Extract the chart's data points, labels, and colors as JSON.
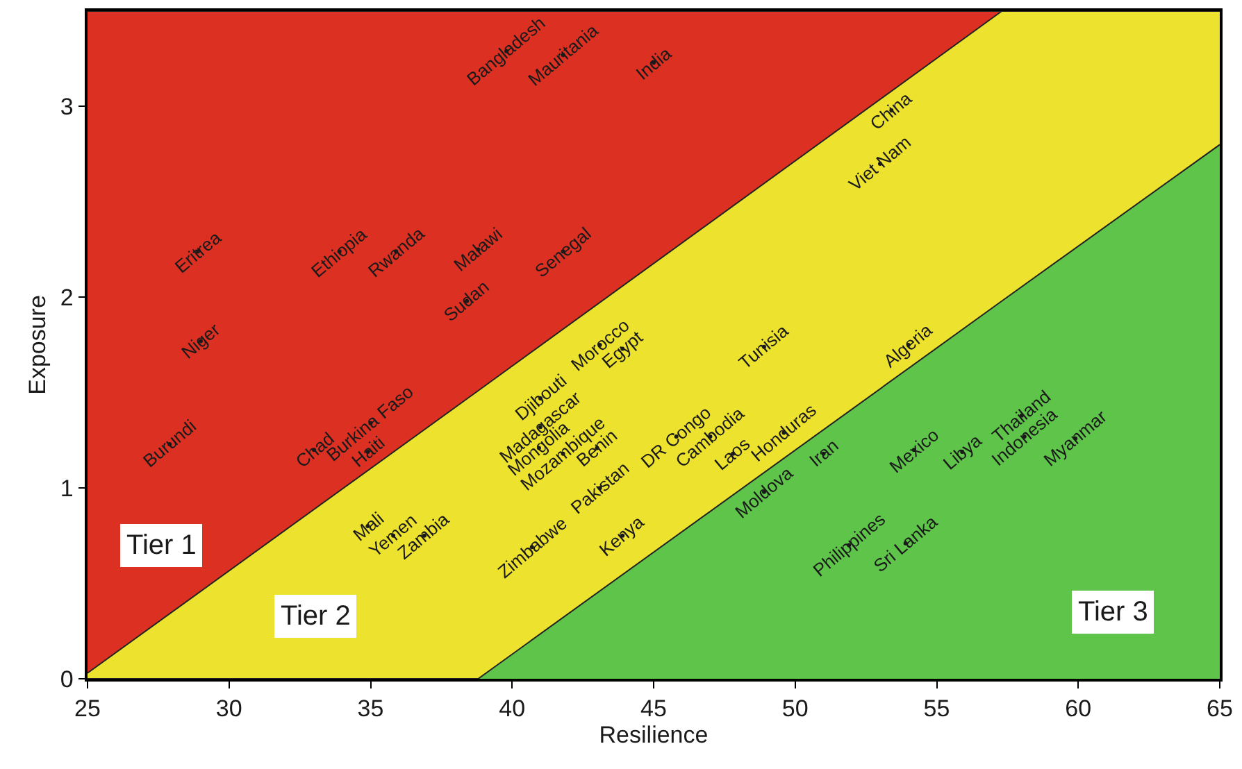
{
  "chart_data": {
    "type": "scatter",
    "xlabel": "Resilience",
    "ylabel": "Exposure",
    "xlim": [
      25,
      65
    ],
    "xticks": [
      25,
      30,
      35,
      40,
      45,
      50,
      55,
      60,
      65
    ],
    "ylim": [
      0,
      3.5
    ],
    "yticks": [
      0,
      1,
      2,
      3
    ],
    "marker": "none",
    "stacked": true,
    "series": [
      {
        "type": "area",
        "color": "#5fc54a",
        "x": [
          25,
          38.8,
          57.3,
          65
        ],
        "values": [
          0,
          0,
          1.98,
          2.8
        ]
      },
      {
        "type": "area",
        "color": "#ede22e",
        "x": [
          25,
          38.8,
          57.3,
          65
        ],
        "values": [
          0.03,
          1.51,
          1.52,
          0.7
        ]
      },
      {
        "type": "area",
        "color": "#dc3023",
        "x": [
          25,
          38.8,
          57.3,
          65
        ],
        "values": [
          3.47,
          1.99,
          0,
          0
        ]
      },
      {
        "color": "#1a1a1a",
        "x": [
          39.8,
          41.8,
          45.0,
          53.4,
          53.0,
          28.9,
          33.9,
          35.9,
          38.8,
          41.8,
          38.4,
          29.0,
          41.0,
          43.1,
          43.9,
          41.0,
          40.95,
          41.8,
          43.0,
          40.7,
          43.1,
          45.8,
          47.0,
          47.8,
          49.6,
          48.9,
          43.9,
          48.9,
          51.0,
          54.0,
          54.2,
          55.9,
          58.0,
          58.1,
          59.9,
          51.9,
          53.9,
          27.9,
          33.0,
          35.0,
          34.9,
          34.9,
          35.8,
          36.9
        ],
        "values": [
          3.29,
          3.27,
          3.23,
          2.98,
          2.7,
          2.24,
          2.24,
          2.24,
          2.25,
          2.24,
          1.98,
          1.77,
          1.47,
          1.75,
          1.73,
          1.32,
          1.21,
          1.18,
          1.21,
          0.69,
          1.0,
          1.27,
          1.27,
          1.18,
          1.29,
          1.74,
          0.75,
          0.98,
          1.18,
          1.75,
          1.2,
          1.19,
          1.38,
          1.27,
          1.26,
          0.7,
          0.71,
          1.23,
          1.2,
          1.34,
          1.19,
          0.8,
          0.75,
          0.75
        ],
        "value_labels": [
          "Bangladesh",
          "Mauritania",
          "India",
          "China",
          "Viet Nam",
          "Eritrea",
          "Ethiopia",
          "Rwanda",
          "Malawi",
          "Senegal",
          "Sudan",
          "Niger",
          "Djibouti",
          "Morocco",
          "Egypt",
          "Madagascar",
          "Mongolia",
          "Mozambique",
          "Benin",
          "Zimbabwe",
          "Pakistan",
          "DR Congo",
          "Cambodia",
          "Laos",
          "Honduras",
          "Tunisia",
          "Kenya",
          "Moldova",
          "Iran",
          "Algeria",
          "Mexico",
          "Libya",
          "Thailand",
          "Indonesia",
          "Myanmar",
          "Philippines",
          "Sri Lanka",
          "Burundi",
          "Chad",
          "Burkina Faso",
          "Haiti",
          "Mali",
          "Yemen",
          "Zambia"
        ]
      }
    ],
    "annotations": [
      "Tier 1",
      "Tier 2",
      "Tier 3"
    ]
  }
}
